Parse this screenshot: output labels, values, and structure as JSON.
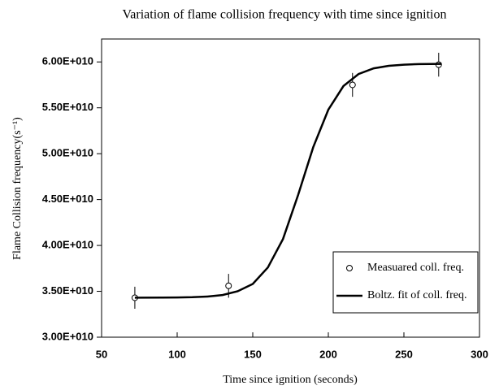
{
  "chart_data": {
    "type": "scatter",
    "title": "Variation of flame collision frequency with time since ignition",
    "xlabel": "Time since ignition (seconds)",
    "ylabel": "Flame Collision frequency(s⁻¹)",
    "xlim": [
      50,
      300
    ],
    "xticks": [
      50,
      100,
      150,
      200,
      250,
      300
    ],
    "ylim": [
      30000000000,
      62500000000
    ],
    "yticks": [
      {
        "value": 30000000000,
        "label": "3.00E+010"
      },
      {
        "value": 35000000000,
        "label": "3.50E+010"
      },
      {
        "value": 40000000000,
        "label": "4.00E+010"
      },
      {
        "value": 45000000000,
        "label": "4.50E+010"
      },
      {
        "value": 50000000000,
        "label": "5.00E+010"
      },
      {
        "value": 55000000000,
        "label": "5.50E+010"
      },
      {
        "value": 60000000000,
        "label": "6.00E+010"
      }
    ],
    "legend": "lower right",
    "series": [
      {
        "name": "Measuared coll. freq.",
        "color": "#000000",
        "marker": "circle",
        "x": [
          72,
          134,
          216,
          273
        ],
        "values": [
          34300000000,
          35600000000,
          57500000000,
          59700000000
        ],
        "errors": [
          1200000000,
          1300000000,
          1300000000,
          1300000000
        ]
      },
      {
        "name": "Boltz. fit of coll. freq.",
        "color": "#000000",
        "marker": "line",
        "x": [
          72,
          90,
          100,
          110,
          120,
          130,
          140,
          150,
          160,
          170,
          180,
          190,
          200,
          210,
          220,
          230,
          240,
          250,
          260,
          275
        ],
        "values": [
          34300000000,
          34310000000,
          34330000000,
          34360000000,
          34430000000,
          34600000000,
          35000000000,
          35800000000,
          37600000000,
          40700000000,
          45500000000,
          50700000000,
          54800000000,
          57370000000,
          58680000000,
          59300000000,
          59580000000,
          59700000000,
          59760000000,
          59790000000
        ]
      }
    ]
  }
}
